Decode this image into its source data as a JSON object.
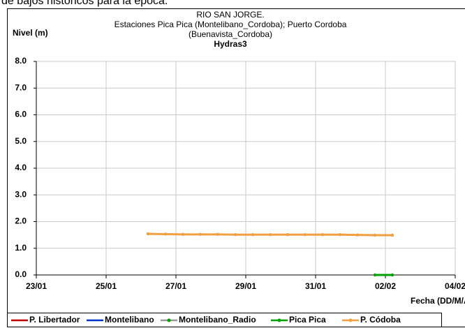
{
  "page_text": "de bajos históricos para la época.",
  "chart_data": {
    "type": "line",
    "title": [
      "RIO SAN JORGE.",
      "Estaciones Pica Pica (Montelibano_Cordoba); Puerto Cordoba",
      "(Buenavista_Cordoba)",
      "Hydras3"
    ],
    "ylabel": "Nivel (m)",
    "xlabel": "Fecha (DD/M/AA",
    "xlim": [
      0,
      12
    ],
    "xticks": [
      {
        "value": 0,
        "label": "23/01"
      },
      {
        "value": 2,
        "label": "25/01"
      },
      {
        "value": 4,
        "label": "27/01"
      },
      {
        "value": 6,
        "label": "29/01"
      },
      {
        "value": 8,
        "label": "31/01"
      },
      {
        "value": 10,
        "label": "02/02"
      },
      {
        "value": 12,
        "label": "04/02"
      }
    ],
    "ylim": [
      0,
      8
    ],
    "yticks": [
      {
        "value": 0,
        "label": "0.0"
      },
      {
        "value": 1,
        "label": "1.0"
      },
      {
        "value": 2,
        "label": "2.0"
      },
      {
        "value": 3,
        "label": "3.0"
      },
      {
        "value": 4,
        "label": "4.0"
      },
      {
        "value": 5,
        "label": "5.0"
      },
      {
        "value": 6,
        "label": "6.0"
      },
      {
        "value": 7,
        "label": "7.0"
      },
      {
        "value": 8,
        "label": "8.0"
      }
    ],
    "grid": true,
    "legend": "bottom",
    "series": [
      {
        "name": "P. Libertador",
        "color": "#c00000",
        "marker": false,
        "x": [],
        "values": []
      },
      {
        "name": "Montelibano",
        "color": "#0033cc",
        "marker": false,
        "x": [],
        "values": []
      },
      {
        "name": "Montelibano_Radio",
        "color": "#999999",
        "marker": true,
        "x": [],
        "values": []
      },
      {
        "name": "Pica Pica",
        "color": "#00a000",
        "marker": true,
        "x": [
          9.7,
          10.2
        ],
        "values": [
          0,
          0
        ]
      },
      {
        "name": "P. Códoba",
        "color": "#f0a040",
        "marker": true,
        "x": [
          3.2,
          3.7,
          4.2,
          4.7,
          5.2,
          5.7,
          6.2,
          6.7,
          7.2,
          7.7,
          8.2,
          8.7,
          9.2,
          9.7,
          10.2
        ],
        "values": [
          1.54,
          1.53,
          1.52,
          1.52,
          1.52,
          1.51,
          1.51,
          1.51,
          1.51,
          1.51,
          1.51,
          1.51,
          1.5,
          1.49,
          1.49
        ]
      }
    ]
  }
}
